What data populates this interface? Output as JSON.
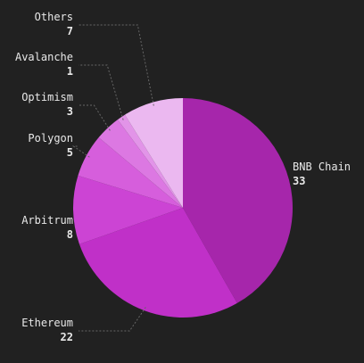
{
  "chart_data": {
    "type": "pie",
    "categories": [
      "BNB Chain",
      "Ethereum",
      "Arbitrum",
      "Polygon",
      "Optimism",
      "Avalanche",
      "Others"
    ],
    "values": [
      33,
      22,
      8,
      5,
      3,
      1,
      7
    ],
    "colors": [
      "#a626ab",
      "#c030c8",
      "#cc44d4",
      "#d65edc",
      "#dc78e2",
      "#e294e8",
      "#ebb8f0"
    ]
  }
}
